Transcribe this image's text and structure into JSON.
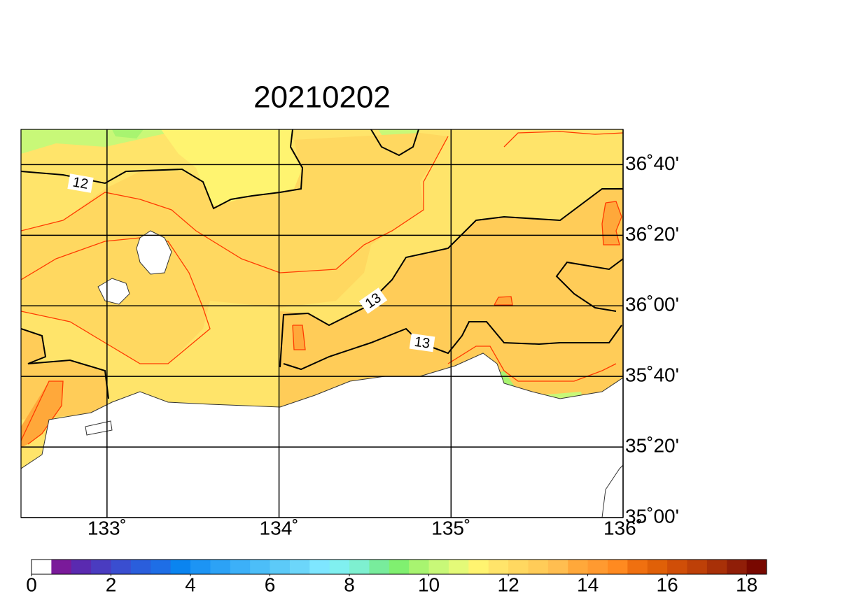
{
  "map": {
    "title": "20210202",
    "xlim": [
      132.5,
      136
    ],
    "ylim": [
      35,
      36.8333
    ],
    "xticks": [
      {
        "value": 133,
        "label": "133˚"
      },
      {
        "value": 134,
        "label": "134˚"
      },
      {
        "value": 135,
        "label": "135˚"
      },
      {
        "value": 136,
        "label": "136˚"
      }
    ],
    "yticks": [
      {
        "value": 35,
        "label": "35˚00'"
      },
      {
        "value": 35.3333,
        "label": "35˚20'"
      },
      {
        "value": 35.6667,
        "label": "35˚40'"
      },
      {
        "value": 36,
        "label": "36˚00'"
      },
      {
        "value": 36.3333,
        "label": "36˚20'"
      },
      {
        "value": 36.6667,
        "label": "36˚40'"
      }
    ],
    "contour_labels": [
      "12",
      "13",
      "13"
    ],
    "colorbar": {
      "lim": [
        0,
        18.5
      ],
      "ticks": [
        0,
        2,
        4,
        6,
        8,
        10,
        12,
        14,
        16,
        18
      ],
      "colors": [
        "#ffffff",
        "#7a1a9a",
        "#5a2ab0",
        "#4a3cc0",
        "#3a4ed0",
        "#2a5edc",
        "#1e6ee6",
        "#0a84f0",
        "#1c94f4",
        "#2ca2f6",
        "#3cb0f8",
        "#4cbef8",
        "#5ccaf8",
        "#6cd6fa",
        "#7ee6ff",
        "#80f0f0",
        "#7ef0d0",
        "#78ec9c",
        "#80f070",
        "#a8f470",
        "#c8f878",
        "#e4fa78",
        "#fff470",
        "#ffe46a",
        "#ffd860",
        "#ffcc58",
        "#ffbe50",
        "#ffa83a",
        "#ff9a30",
        "#ff8a20",
        "#f07010",
        "#e06008",
        "#d04e08",
        "#be4008",
        "#a83008",
        "#901e08",
        "#780800"
      ]
    }
  }
}
